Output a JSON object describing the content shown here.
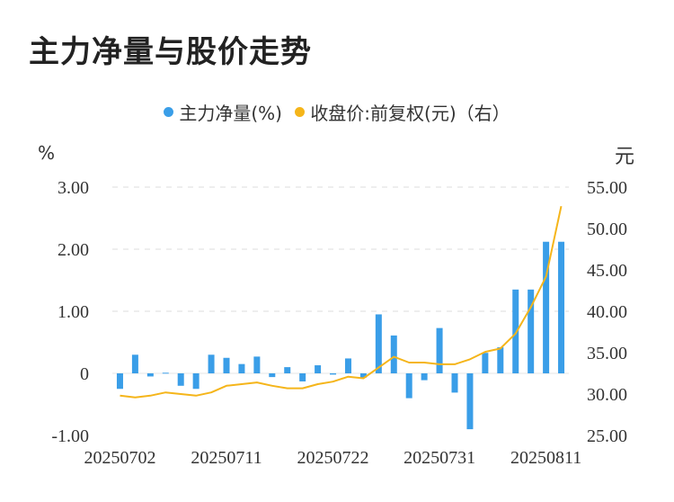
{
  "title": "主力净量与股价走势",
  "legend": {
    "bar_label": "主力净量(%)",
    "line_label": "收盘价:前复权(元)（右）"
  },
  "units": {
    "left": "%",
    "right": "元"
  },
  "colors": {
    "bar": "#3a9ee8",
    "line": "#f5b51a",
    "grid": "#dddddd",
    "zero_line": "#e6e6e6"
  },
  "chart_data": {
    "type": "bar",
    "title": "主力净量与股价走势",
    "x_tick_labels": [
      "20250702",
      "20250711",
      "20250722",
      "20250731",
      "20250811"
    ],
    "x_tick_indices": [
      0,
      7,
      14,
      21,
      28
    ],
    "categories": [
      "1",
      "2",
      "3",
      "4",
      "5",
      "6",
      "7",
      "8",
      "9",
      "10",
      "11",
      "12",
      "13",
      "14",
      "15",
      "16",
      "17",
      "18",
      "19",
      "20",
      "21",
      "22",
      "23",
      "24",
      "25",
      "26",
      "27",
      "28",
      "29",
      "30"
    ],
    "y_left": {
      "label": "%",
      "ticks": [
        "-1.00",
        "0",
        "1.00",
        "2.00",
        "3.00"
      ],
      "range": [
        -1,
        3
      ]
    },
    "y_right": {
      "label": "元",
      "ticks": [
        "25.00",
        "30.00",
        "35.00",
        "40.00",
        "45.00",
        "50.00",
        "55.00"
      ],
      "range": [
        25,
        55
      ]
    },
    "series": [
      {
        "name": "主力净量(%)",
        "type": "bar",
        "axis": "left",
        "values": [
          -0.25,
          0.3,
          -0.05,
          0.01,
          -0.2,
          -0.25,
          0.3,
          0.25,
          0.15,
          0.27,
          -0.06,
          0.1,
          -0.13,
          0.13,
          -0.02,
          0.24,
          -0.07,
          0.95,
          0.61,
          -0.4,
          -0.11,
          0.73,
          -0.31,
          -0.9,
          0.33,
          0.42,
          1.35,
          1.35,
          2.12,
          2.12
        ]
      },
      {
        "name": "收盘价:前复权(元)（右）",
        "type": "line",
        "axis": "right",
        "values": [
          29.8,
          29.6,
          29.8,
          30.2,
          30.0,
          29.8,
          30.2,
          31.0,
          31.2,
          31.4,
          31.0,
          30.7,
          30.7,
          31.2,
          31.5,
          32.1,
          31.9,
          33.2,
          34.5,
          33.8,
          33.8,
          33.6,
          33.6,
          34.2,
          35.1,
          35.5,
          37.3,
          40.5,
          44.2,
          52.7
        ]
      }
    ]
  }
}
